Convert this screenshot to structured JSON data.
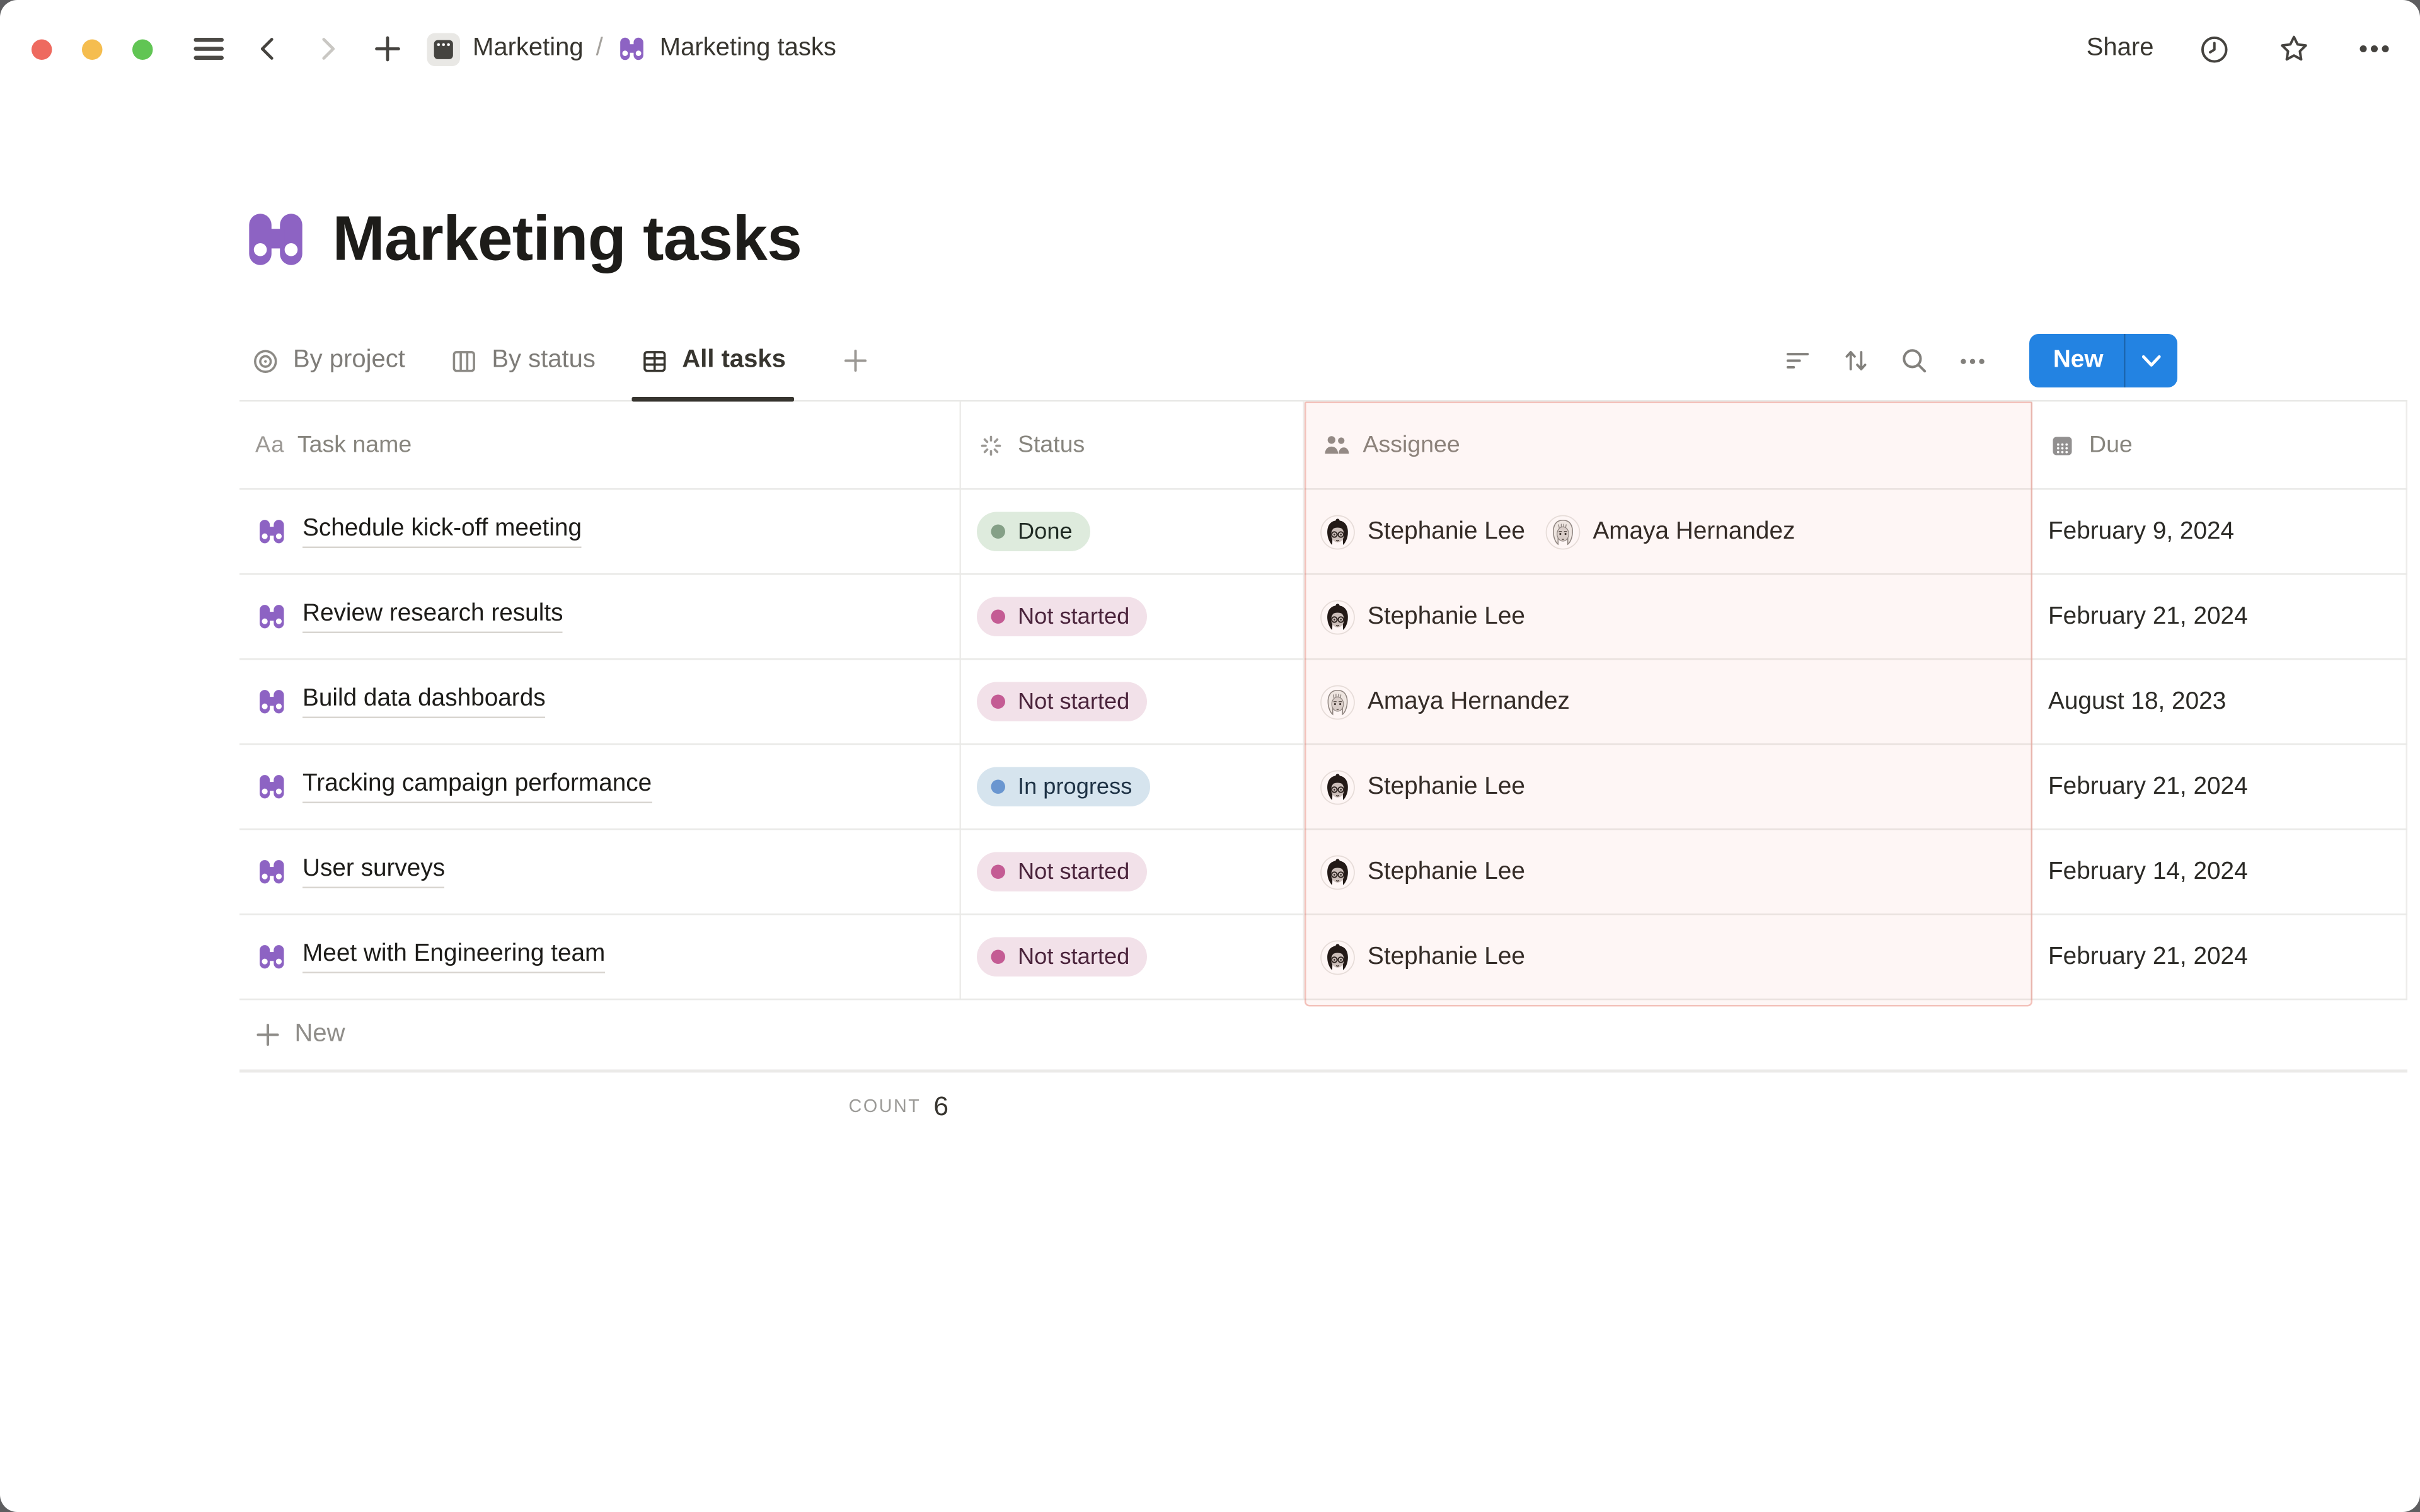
{
  "window_controls": {
    "close_color": "#EE6A5F",
    "minimize_color": "#F5BD4F",
    "zoom_color": "#61C554"
  },
  "titlebar": {
    "breadcrumb": {
      "parent": "Marketing",
      "separator": "/",
      "current": "Marketing tasks"
    },
    "share_label": "Share"
  },
  "page": {
    "title": "Marketing tasks",
    "icon": "binoculars-icon",
    "icon_color": "#8D63C3"
  },
  "view_bar": {
    "tabs": [
      {
        "label": "By project",
        "icon": "target-icon",
        "active": false
      },
      {
        "label": "By status",
        "icon": "board-icon",
        "active": false
      },
      {
        "label": "All tasks",
        "icon": "table-icon",
        "active": true
      }
    ],
    "new_button_label": "New",
    "accent_color": "#2383E2"
  },
  "table": {
    "aa_icon_glyph": "Aa",
    "columns": [
      {
        "label": "Task name",
        "icon": "aa-icon"
      },
      {
        "label": "Status",
        "icon": "spinner-icon"
      },
      {
        "label": "Assignee",
        "icon": "people-icon",
        "highlighted": true
      },
      {
        "label": "Due",
        "icon": "calendar-icon"
      }
    ],
    "highlight_border_color": "#DF5A49",
    "status_styles": {
      "done": {
        "bg": "#DEEBDD",
        "dot": "#85A087",
        "text": "#1F2A23"
      },
      "not-started": {
        "bg": "#F2E1E9",
        "dot": "#C45C94",
        "text": "#4A233B"
      },
      "in-progress": {
        "bg": "#D6E4EE",
        "dot": "#6A96D0",
        "text": "#1E3245"
      }
    },
    "rows": [
      {
        "task": "Schedule kick-off meeting",
        "status": "Done",
        "status_key": "done",
        "assignees": [
          {
            "name": "Stephanie Lee",
            "avatar": "stephanie-lee-avatar"
          },
          {
            "name": "Amaya Hernandez",
            "avatar": "amaya-hernandez-avatar"
          }
        ],
        "due": "February 9, 2024"
      },
      {
        "task": "Review research results",
        "status": "Not started",
        "status_key": "not-started",
        "assignees": [
          {
            "name": "Stephanie Lee",
            "avatar": "stephanie-lee-avatar"
          }
        ],
        "due": "February 21, 2024"
      },
      {
        "task": "Build data dashboards",
        "status": "Not started",
        "status_key": "not-started",
        "assignees": [
          {
            "name": "Amaya Hernandez",
            "avatar": "amaya-hernandez-avatar"
          }
        ],
        "due": "August 18, 2023"
      },
      {
        "task": "Tracking campaign performance",
        "status": "In progress",
        "status_key": "in-progress",
        "assignees": [
          {
            "name": "Stephanie Lee",
            "avatar": "stephanie-lee-avatar"
          }
        ],
        "due": "February 21, 2024"
      },
      {
        "task": "User surveys",
        "status": "Not started",
        "status_key": "not-started",
        "assignees": [
          {
            "name": "Stephanie Lee",
            "avatar": "stephanie-lee-avatar"
          }
        ],
        "due": "February 14, 2024"
      },
      {
        "task": "Meet with Engineering team",
        "status": "Not started",
        "status_key": "not-started",
        "assignees": [
          {
            "name": "Stephanie Lee",
            "avatar": "stephanie-lee-avatar"
          }
        ],
        "due": "February 21, 2024"
      }
    ],
    "new_row_label": "New",
    "footer": {
      "count_label": "COUNT",
      "count_value": "6"
    }
  }
}
